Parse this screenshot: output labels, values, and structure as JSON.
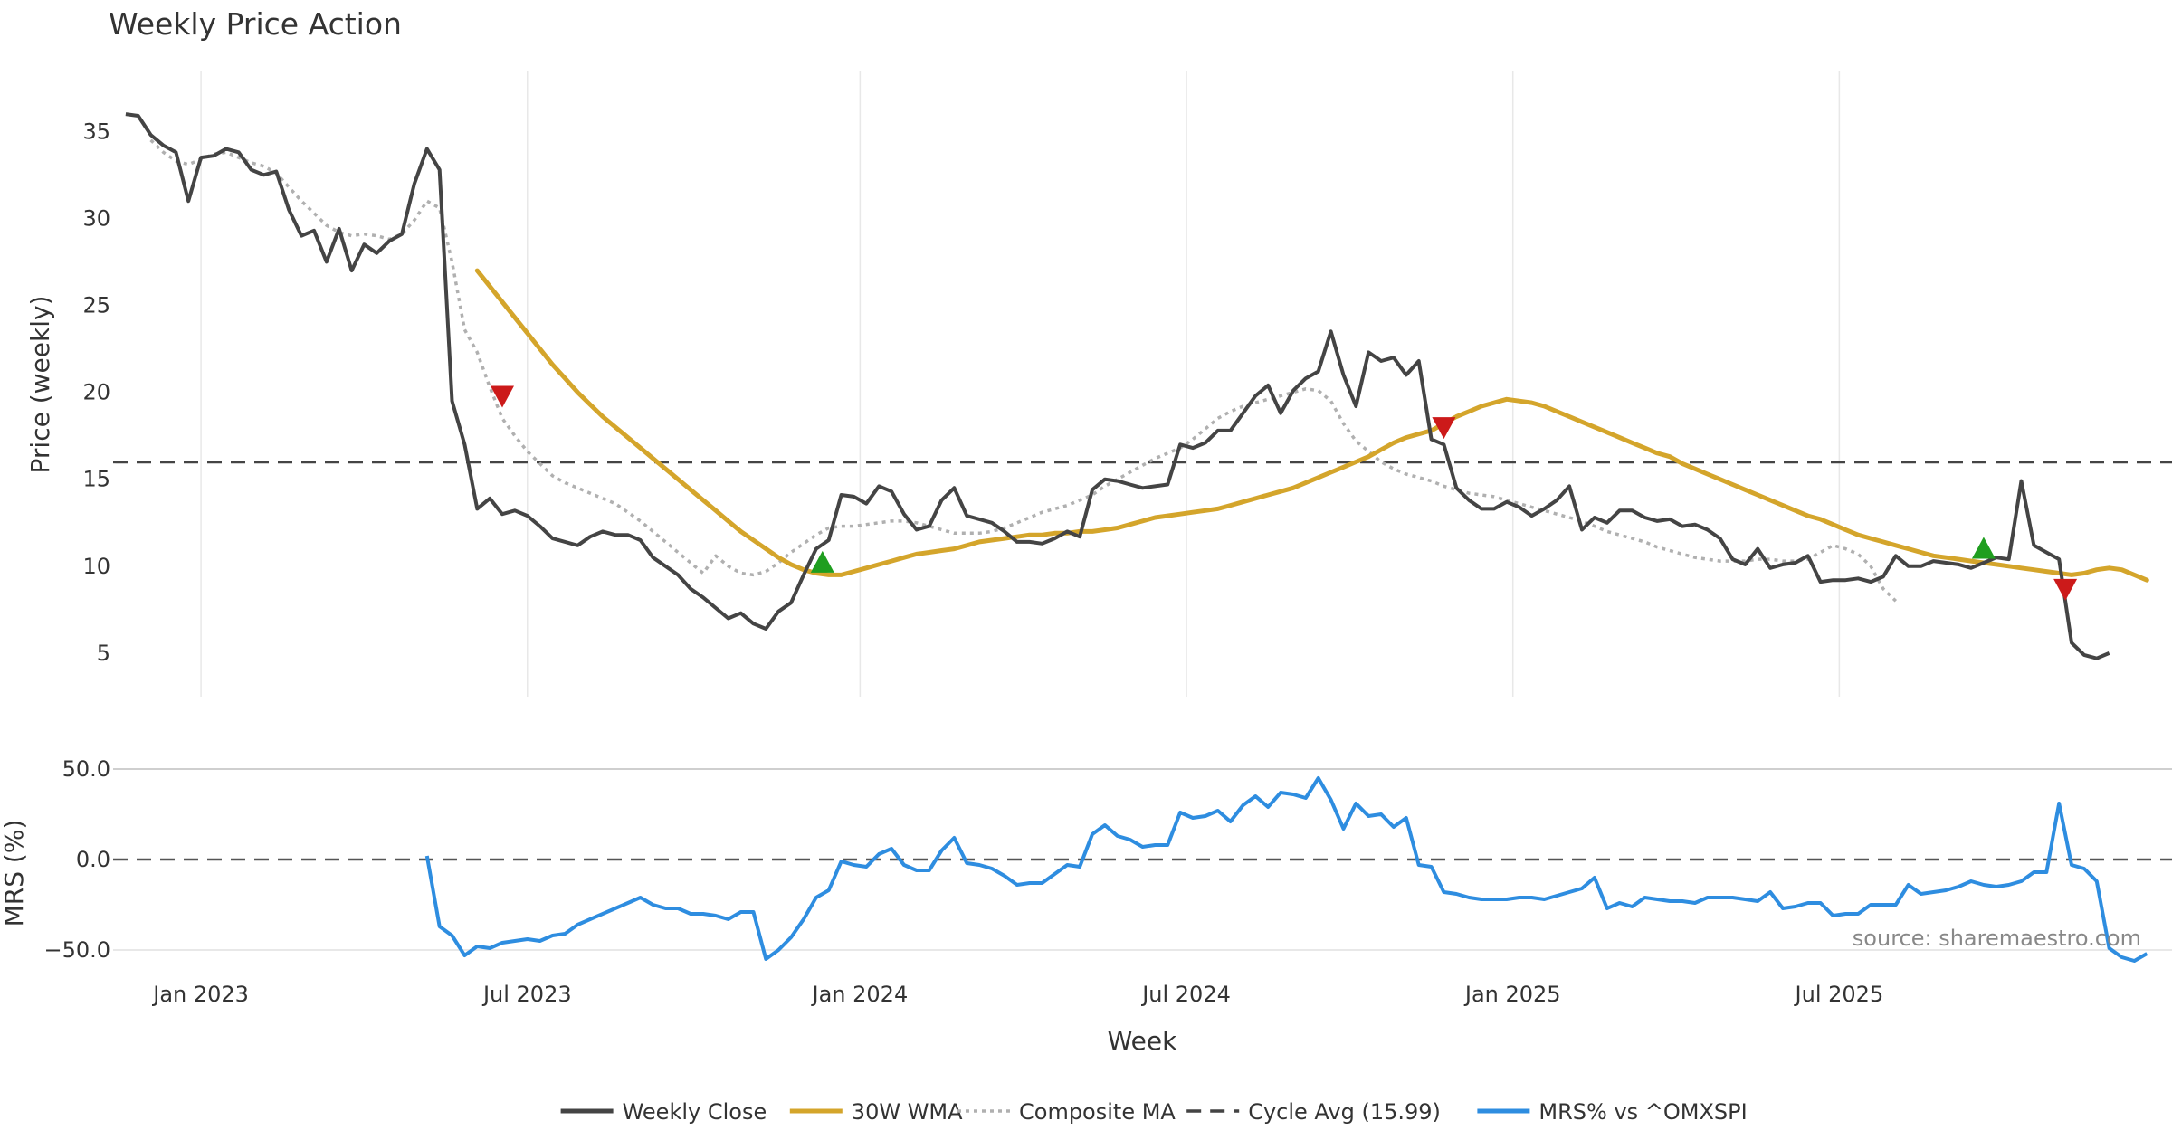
{
  "chart_data": {
    "type": "line",
    "title": "Weekly Price Action",
    "xlabel": "Week",
    "ylabel_price": "Price (weekly)",
    "ylabel_mrs": "MRS (%)",
    "source": "source: sharemaestro.com",
    "x_ticks": [
      {
        "label": "Jan 2023",
        "week": 6
      },
      {
        "label": "Jul 2023",
        "week": 32
      },
      {
        "label": "Jan 2024",
        "week": 58.5
      },
      {
        "label": "Jul 2024",
        "week": 84.5
      },
      {
        "label": "Jan 2025",
        "week": 110.5
      },
      {
        "label": "Jul 2025",
        "week": 136.5
      }
    ],
    "x_range": [
      -1,
      163
    ],
    "price_ylim": [
      2.5,
      38.5
    ],
    "price_yticks": [
      5,
      10,
      15,
      20,
      25,
      30,
      35
    ],
    "mrs_ylim": [
      -56,
      56
    ],
    "mrs_yticks": [
      {
        "v": 50,
        "label": "50.0"
      },
      {
        "v": 0,
        "label": "0.0"
      },
      {
        "v": -50,
        "label": "−50.0"
      }
    ],
    "cycle_avg": 15.99,
    "weekly_close": {
      "start_week": 0,
      "values": [
        36.0,
        35.9,
        34.8,
        34.2,
        33.8,
        31.0,
        33.5,
        33.6,
        34.0,
        33.8,
        32.8,
        32.5,
        32.7,
        30.5,
        29.0,
        29.3,
        27.5,
        29.4,
        27.0,
        28.5,
        28.0,
        28.7,
        29.1,
        32.0,
        34.0,
        32.8,
        19.5,
        17.0,
        13.3,
        13.9,
        13.0,
        13.2,
        12.9,
        12.3,
        11.6,
        11.4,
        11.2,
        11.7,
        12.0,
        11.8,
        11.8,
        11.5,
        10.5,
        10.0,
        9.5,
        8.7,
        8.2,
        7.6,
        7.0,
        7.3,
        6.7,
        6.4,
        7.4,
        7.9,
        9.5,
        11.0,
        11.5,
        14.1,
        14.0,
        13.6,
        14.6,
        14.3,
        13.0,
        12.1,
        12.3,
        13.8,
        14.5,
        12.9,
        12.7,
        12.5,
        12.0,
        11.4,
        11.4,
        11.3,
        11.6,
        12.0,
        11.7,
        14.4,
        15.0,
        14.9,
        14.7,
        14.5,
        14.6,
        14.7,
        17.0,
        16.8,
        17.1,
        17.8,
        17.8,
        18.8,
        19.8,
        20.4,
        18.8,
        20.1,
        20.8,
        21.2,
        23.5,
        21.0,
        19.2,
        22.3,
        21.8,
        22.0,
        21.0,
        21.8,
        17.3,
        17.0,
        14.5,
        13.8,
        13.3,
        13.3,
        13.7,
        13.4,
        12.9,
        13.3,
        13.8,
        14.6,
        12.1,
        12.8,
        12.5,
        13.2,
        13.2,
        12.8,
        12.6,
        12.7,
        12.3,
        12.4,
        12.1,
        11.6,
        10.4,
        10.1,
        11.0,
        9.9,
        10.1,
        10.2,
        10.6,
        9.1,
        9.2,
        9.2,
        9.3,
        9.1,
        9.4,
        10.6,
        10.0,
        10.0,
        10.3,
        10.2,
        10.1,
        9.9,
        10.2,
        10.5,
        10.4,
        14.9,
        11.2,
        10.8,
        10.4,
        5.6,
        4.9,
        4.7,
        5.0
      ]
    },
    "wma_30": {
      "start_week": 28,
      "values": [
        27.0,
        26.1,
        25.2,
        24.3,
        23.4,
        22.5,
        21.6,
        20.8,
        20.0,
        19.3,
        18.6,
        18.0,
        17.4,
        16.8,
        16.2,
        15.6,
        15.0,
        14.4,
        13.8,
        13.2,
        12.6,
        12.0,
        11.5,
        11.0,
        10.5,
        10.1,
        9.8,
        9.6,
        9.5,
        9.5,
        9.7,
        9.9,
        10.1,
        10.3,
        10.5,
        10.7,
        10.8,
        10.9,
        11.0,
        11.2,
        11.4,
        11.5,
        11.6,
        11.7,
        11.8,
        11.8,
        11.9,
        11.9,
        12.0,
        12.0,
        12.1,
        12.2,
        12.4,
        12.6,
        12.8,
        12.9,
        13.0,
        13.1,
        13.2,
        13.3,
        13.5,
        13.7,
        13.9,
        14.1,
        14.3,
        14.5,
        14.8,
        15.1,
        15.4,
        15.7,
        16.0,
        16.3,
        16.7,
        17.1,
        17.4,
        17.6,
        17.8,
        18.2,
        18.6,
        18.9,
        19.2,
        19.4,
        19.6,
        19.5,
        19.4,
        19.2,
        18.9,
        18.6,
        18.3,
        18.0,
        17.7,
        17.4,
        17.1,
        16.8,
        16.5,
        16.3,
        15.9,
        15.6,
        15.3,
        15.0,
        14.7,
        14.4,
        14.1,
        13.8,
        13.5,
        13.2,
        12.9,
        12.7,
        12.4,
        12.1,
        11.8,
        11.6,
        11.4,
        11.2,
        11.0,
        10.8,
        10.6,
        10.5,
        10.4,
        10.3,
        10.2,
        10.1,
        10.0,
        9.9,
        9.8,
        9.7,
        9.6,
        9.5,
        9.6,
        9.8,
        9.9,
        9.8,
        9.5,
        9.2
      ]
    },
    "composite_ma": {
      "start_week": 2,
      "values": [
        34.5,
        33.8,
        33.3,
        33.1,
        33.4,
        33.7,
        33.8,
        33.5,
        33.2,
        33.0,
        32.6,
        31.8,
        31.0,
        30.3,
        29.6,
        29.2,
        29.0,
        29.1,
        29.0,
        28.8,
        29.1,
        29.9,
        31.0,
        30.6,
        27.5,
        23.6,
        22.3,
        20.3,
        18.5,
        17.5,
        16.6,
        15.9,
        15.2,
        14.8,
        14.5,
        14.2,
        13.9,
        13.6,
        13.1,
        12.6,
        12.0,
        11.4,
        10.8,
        10.2,
        9.6,
        10.6,
        10.0,
        9.6,
        9.5,
        9.7,
        10.2,
        10.8,
        11.3,
        11.8,
        12.2,
        12.3,
        12.3,
        12.4,
        12.5,
        12.6,
        12.6,
        12.5,
        12.3,
        12.1,
        11.9,
        11.9,
        11.9,
        12.0,
        12.2,
        12.5,
        12.8,
        13.1,
        13.3,
        13.5,
        13.8,
        14.1,
        14.6,
        15.0,
        15.4,
        15.8,
        16.2,
        16.5,
        16.8,
        17.3,
        17.9,
        18.5,
        18.9,
        19.2,
        19.4,
        19.6,
        19.8,
        20.0,
        20.2,
        20.1,
        19.5,
        18.2,
        17.2,
        16.6,
        16.0,
        15.6,
        15.3,
        15.1,
        14.9,
        14.6,
        14.4,
        14.2,
        14.1,
        14.0,
        13.8,
        13.6,
        13.4,
        13.2,
        13.0,
        12.8,
        12.6,
        12.3,
        12.0,
        11.8,
        11.6,
        11.4,
        11.1,
        10.9,
        10.7,
        10.5,
        10.4,
        10.3,
        10.3,
        10.3,
        10.4,
        10.4,
        10.3,
        10.3,
        10.4,
        10.8,
        11.2,
        11.0,
        10.7,
        10.0,
        8.7,
        8.0
      ]
    },
    "signals": [
      {
        "type": "sell",
        "week": 30,
        "value": 19.9
      },
      {
        "type": "buy",
        "week": 55.5,
        "value": 10.1
      },
      {
        "type": "sell",
        "week": 105,
        "value": 18.1
      },
      {
        "type": "buy",
        "week": 148,
        "value": 10.9
      },
      {
        "type": "sell",
        "week": 154.5,
        "value": 8.8
      }
    ],
    "mrs": {
      "start_week": 24,
      "values": [
        2,
        -37,
        -42,
        -53,
        -48,
        -49,
        -46,
        -45,
        -44,
        -45,
        -42,
        -41,
        -36,
        -33,
        -30,
        -27,
        -24,
        -21,
        -25,
        -27,
        -27,
        -30,
        -30,
        -31,
        -33,
        -29,
        -29,
        -55,
        -50,
        -43,
        -33,
        -21,
        -17,
        -1,
        -3,
        -4,
        3,
        6,
        -3,
        -6,
        -6,
        5,
        12,
        -2,
        -3,
        -5,
        -9,
        -14,
        -13,
        -13,
        -8,
        -3,
        -4,
        14,
        19,
        13,
        11,
        7,
        8,
        8,
        26,
        23,
        24,
        27,
        21,
        30,
        35,
        29,
        37,
        36,
        34,
        45,
        33,
        17,
        31,
        24,
        25,
        18,
        23,
        -3,
        -4,
        -18,
        -19,
        -21,
        -22,
        -22,
        -22,
        -21,
        -21,
        -22,
        -20,
        -18,
        -16,
        -10,
        -27,
        -24,
        -26,
        -21,
        -22,
        -23,
        -23,
        -24,
        -21,
        -21,
        -21,
        -22,
        -23,
        -18,
        -27,
        -26,
        -24,
        -24,
        -31,
        -30,
        -30,
        -25,
        -25,
        -25,
        -14,
        -19,
        -18,
        -17,
        -15,
        -12,
        -14,
        -15,
        -14,
        -12,
        -7,
        -7,
        31,
        -3,
        -5,
        -12,
        -49,
        -54,
        -56,
        -52
      ]
    },
    "legend": [
      {
        "label": "Weekly Close",
        "color": "#444444",
        "style": "solid"
      },
      {
        "label": "30W WMA",
        "color": "#d4a52b",
        "style": "solid"
      },
      {
        "label": "Composite MA",
        "color": "#b0b0b0",
        "style": "dotted"
      },
      {
        "label": "Cycle Avg (15.99)",
        "color": "#444444",
        "style": "dashed"
      },
      {
        "label": "MRS% vs ^OMXSPI",
        "color": "#2e8de0",
        "style": "solid"
      }
    ],
    "colors": {
      "close": "#444444",
      "wma": "#d4a52b",
      "composite": "#b0b0b0",
      "cycle": "#444444",
      "mrs": "#2e8de0",
      "buy": "#1f9e1f",
      "sell": "#cc1a1a",
      "grid": "#e8e8e8"
    }
  }
}
